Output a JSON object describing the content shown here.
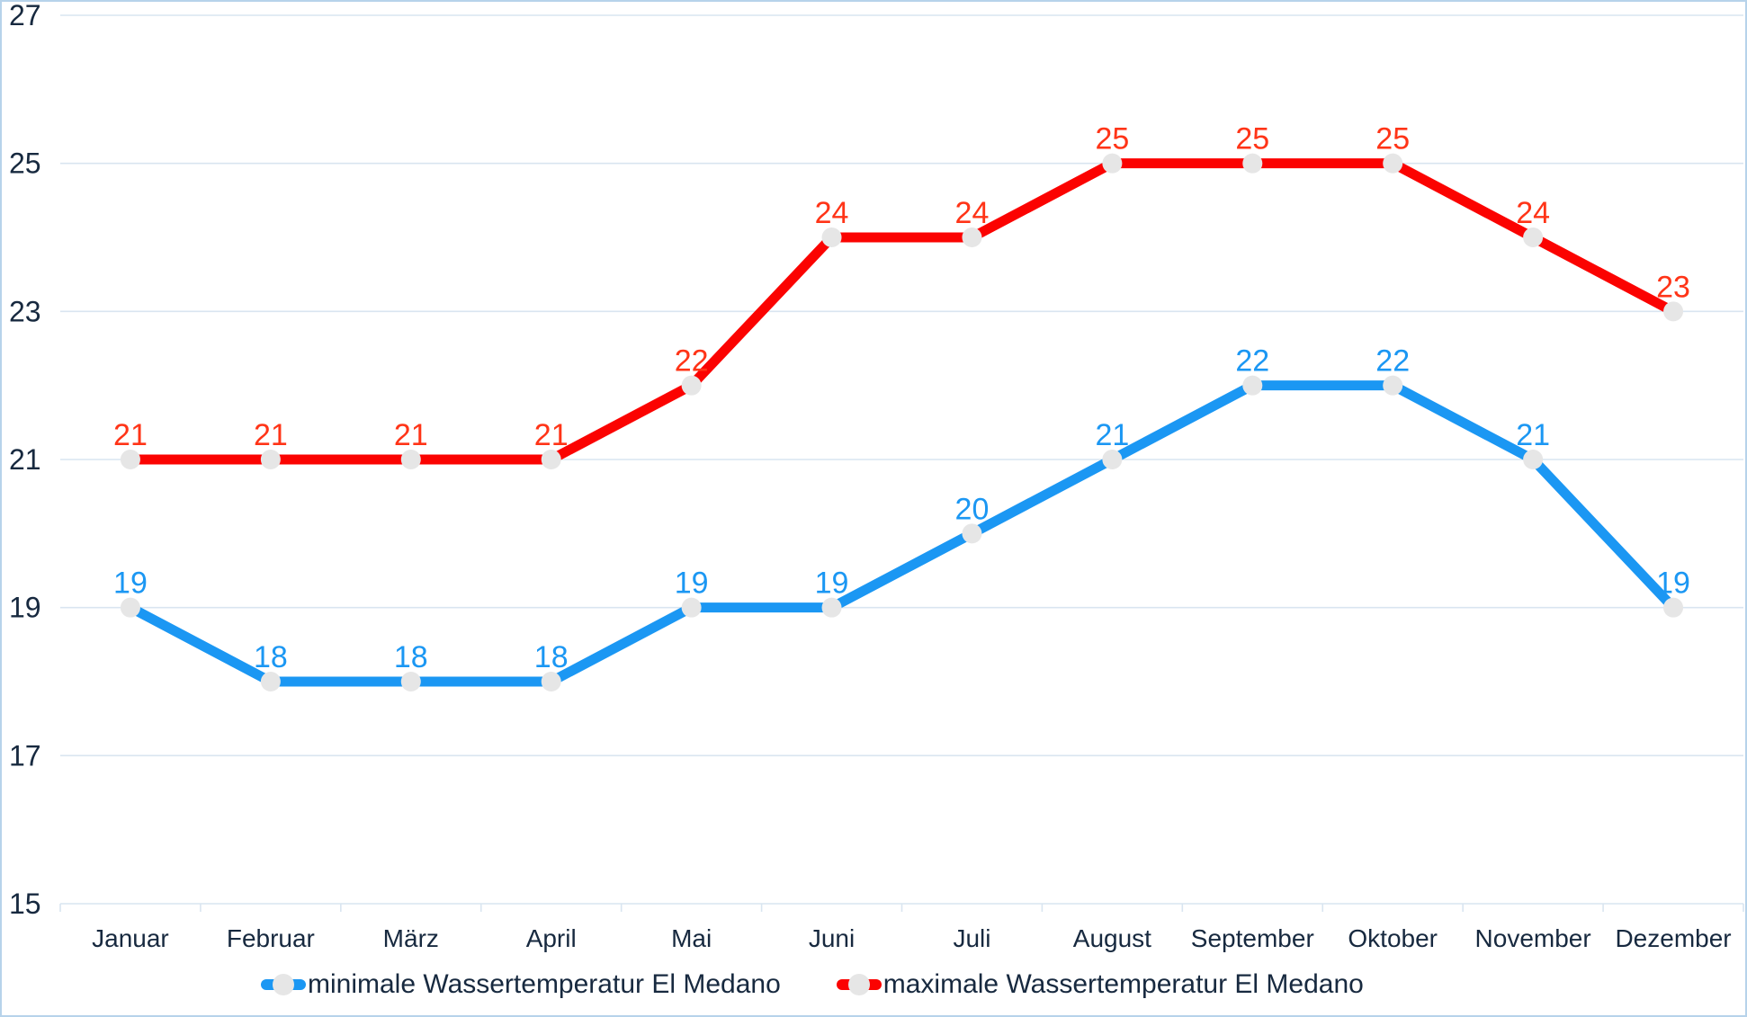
{
  "chart_data": {
    "type": "line",
    "title": "",
    "categories": [
      "Januar",
      "Februar",
      "März",
      "April",
      "Mai",
      "Juni",
      "Juli",
      "August",
      "September",
      "Oktober",
      "November",
      "Dezember"
    ],
    "y_ticks": [
      27,
      25,
      23,
      21,
      19,
      17,
      15
    ],
    "ylim": [
      15,
      27
    ],
    "grid": true,
    "legend_position": "bottom",
    "series": [
      {
        "name": "minimale Wassertemperatur El Medano",
        "values": [
          19,
          18,
          18,
          18,
          19,
          19,
          20,
          21,
          22,
          22,
          21,
          19
        ],
        "line_color": "#1b97f3",
        "label_color": "#1b97f3"
      },
      {
        "name": "maximale Wassertemperatur El Medano",
        "values": [
          21,
          21,
          21,
          21,
          22,
          24,
          24,
          25,
          25,
          25,
          24,
          23
        ],
        "line_color": "#fb0301",
        "label_color": "#ff3417"
      }
    ],
    "colors": {
      "marker": "#e6e6e6",
      "gridline": "#d9e5f0",
      "axis_text": "#17293f",
      "border": "#b7d3ea",
      "background": "#ffffff"
    }
  }
}
